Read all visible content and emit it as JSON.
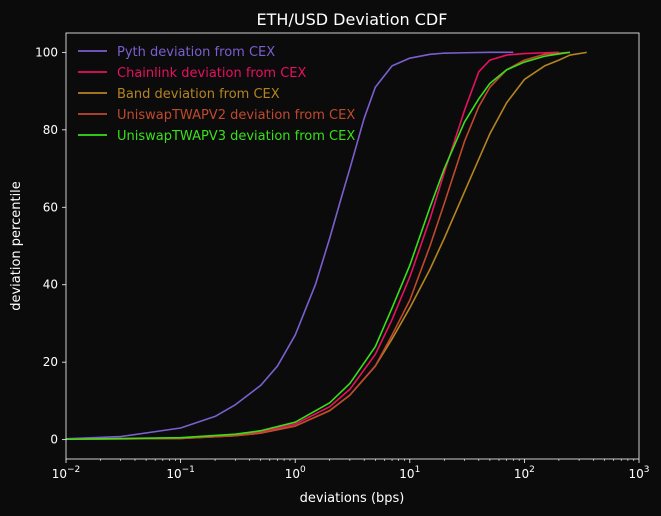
{
  "chart_data": {
    "type": "line",
    "title": "ETH/USD Deviation CDF",
    "xlabel": "deviations (bps)",
    "ylabel": "deviation percentile",
    "xscale": "log",
    "xlim": [
      0.01,
      1000
    ],
    "ylim": [
      -5,
      105
    ],
    "grid": false,
    "legend_position": "top-left",
    "background_color": "#0b0b0b",
    "xticks": [
      {
        "value": 0.01,
        "base": "10",
        "exp": "−2"
      },
      {
        "value": 0.1,
        "base": "10",
        "exp": "−1"
      },
      {
        "value": 1,
        "base": "10",
        "exp": "0"
      },
      {
        "value": 10,
        "base": "10",
        "exp": "1"
      },
      {
        "value": 100,
        "base": "10",
        "exp": "2"
      },
      {
        "value": 1000,
        "base": "10",
        "exp": "3"
      }
    ],
    "yticks": [
      0,
      20,
      40,
      60,
      80,
      100
    ],
    "series": [
      {
        "name": "Pyth deviation from CEX",
        "color": "#7b5fd0",
        "x": [
          0.01,
          0.03,
          0.1,
          0.2,
          0.3,
          0.5,
          0.7,
          1,
          1.5,
          2,
          2.5,
          3,
          4,
          5,
          7,
          10,
          15,
          20,
          30,
          50,
          80
        ],
        "y": [
          0.2,
          0.8,
          3,
          6,
          9,
          14,
          19,
          27,
          40,
          52,
          62,
          70,
          83,
          91,
          96.5,
          98.5,
          99.5,
          99.8,
          99.9,
          100,
          100
        ]
      },
      {
        "name": "Chainlink deviation from CEX",
        "color": "#e8105f",
        "x": [
          0.01,
          0.1,
          0.3,
          0.5,
          1,
          2,
          3,
          5,
          7,
          10,
          15,
          20,
          30,
          40,
          50,
          70,
          100,
          150,
          200
        ],
        "y": [
          0.1,
          0.4,
          1.2,
          2,
          4,
          8.5,
          13,
          22,
          31,
          42,
          57,
          69,
          85,
          95,
          98,
          99.3,
          99.7,
          99.9,
          100
        ]
      },
      {
        "name": "Band deviation from CEX",
        "color": "#b58420",
        "x": [
          0.01,
          0.1,
          0.3,
          0.5,
          1,
          2,
          3,
          5,
          7,
          10,
          15,
          20,
          30,
          50,
          70,
          100,
          150,
          200,
          250,
          350
        ],
        "y": [
          0.1,
          0.3,
          1,
          1.7,
          3.5,
          7.5,
          11.5,
          19,
          26,
          34,
          44,
          52,
          64,
          79,
          87,
          93,
          96.5,
          98,
          99.3,
          100
        ]
      },
      {
        "name": "UniswapTWAPV2 deviation from CEX",
        "color": "#c0492d",
        "x": [
          0.01,
          0.1,
          0.3,
          0.5,
          1,
          2,
          3,
          5,
          7,
          10,
          15,
          20,
          30,
          40,
          50,
          70,
          100,
          150,
          250
        ],
        "y": [
          0.1,
          0.3,
          1,
          1.7,
          3.5,
          7.5,
          11.5,
          19,
          27,
          36,
          50,
          61,
          77,
          86,
          91,
          95.5,
          98,
          99.5,
          100
        ]
      },
      {
        "name": "UniswapTWAPV3 deviation from CEX",
        "color": "#39e01a",
        "x": [
          0.01,
          0.1,
          0.3,
          0.5,
          1,
          2,
          3,
          5,
          7,
          10,
          15,
          20,
          30,
          40,
          50,
          70,
          100,
          150,
          200,
          250
        ],
        "y": [
          0.1,
          0.5,
          1.4,
          2.3,
          4.5,
          9.5,
          14.5,
          24,
          34,
          45,
          60,
          70,
          82,
          88,
          92,
          95.5,
          97.5,
          99,
          99.6,
          100
        ]
      }
    ]
  }
}
